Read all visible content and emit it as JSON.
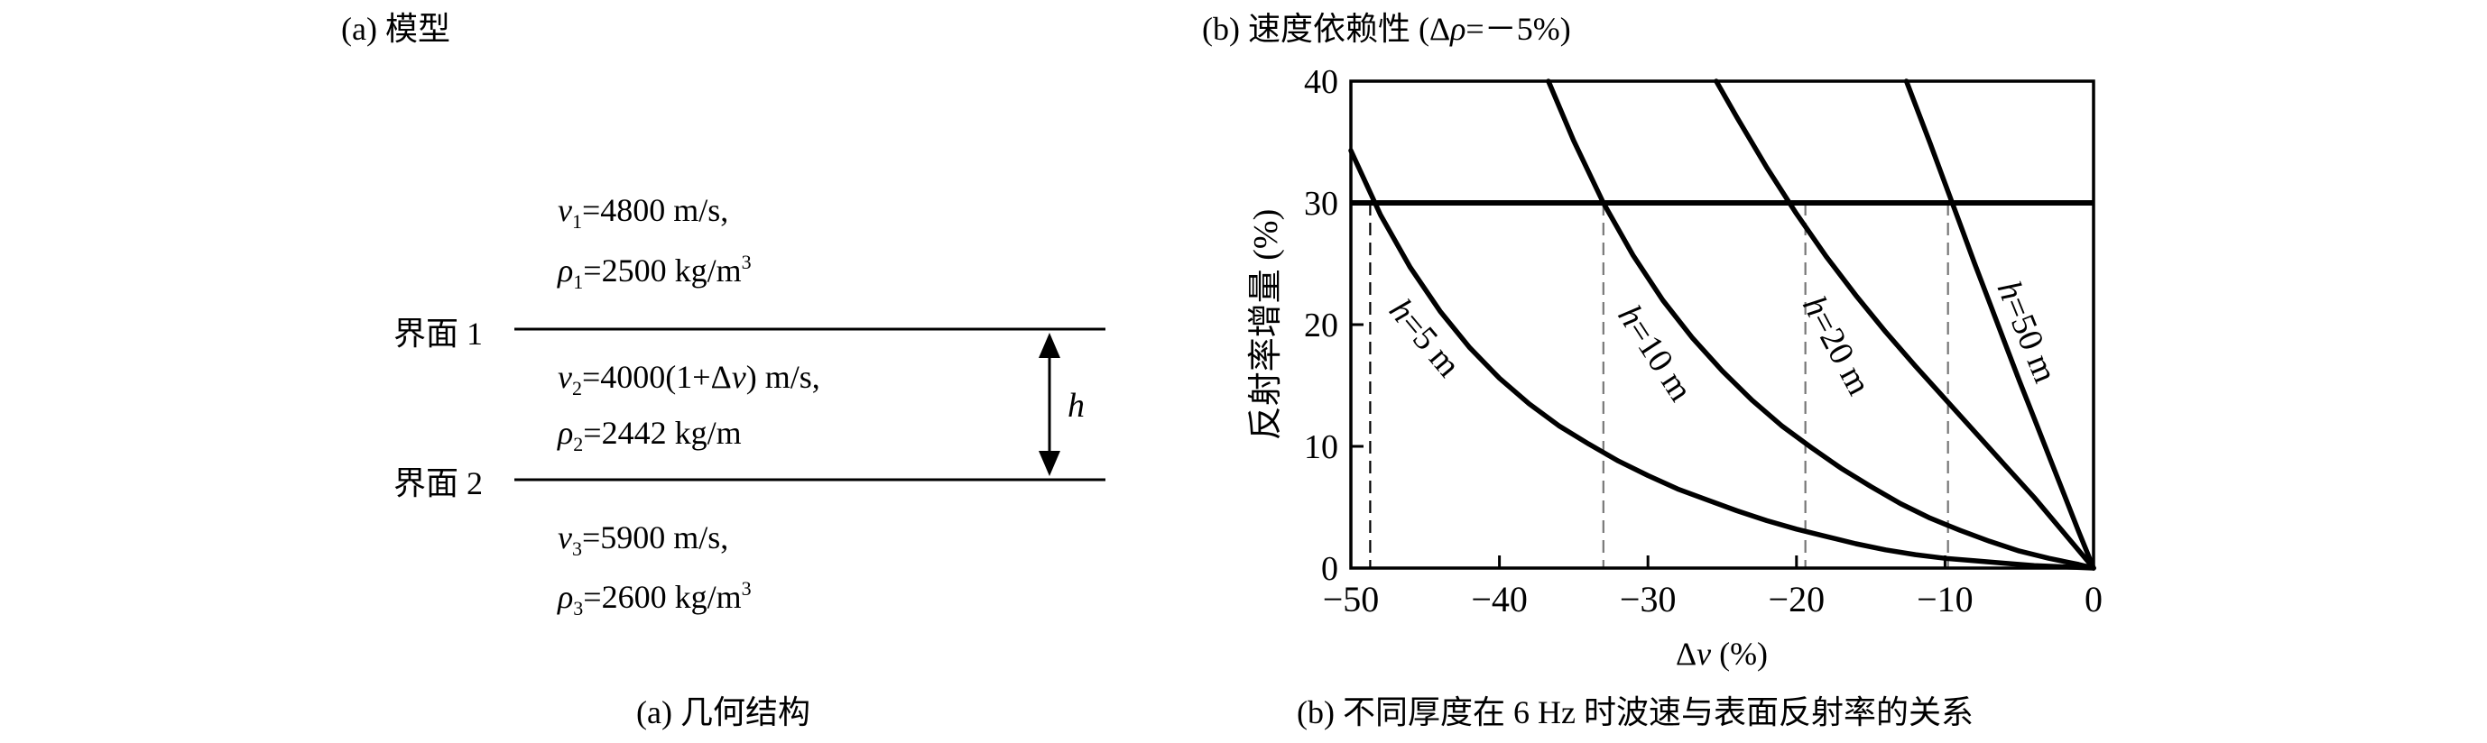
{
  "panel_a": {
    "heading": "(a) 模型",
    "caption": "(a) 几何结构",
    "interface_1": "界面 1",
    "interface_2": "界面 2",
    "thickness_symbol": "h",
    "layer_1": {
      "v_sym": "v",
      "v_sub": "1",
      "v_val": "=4800 m/s,",
      "rho_sym": "ρ",
      "rho_sub": "1",
      "rho_val": "=2500 kg/m",
      "rho_sup": "3"
    },
    "layer_2": {
      "v_sym": "v",
      "v_sub": "2",
      "v_val_a": "=4000(1+Δ",
      "v_val_b": "v",
      "v_val_c": ") m/s,",
      "rho_sym": "ρ",
      "rho_sub": "2",
      "rho_val": "=2442 kg/m"
    },
    "layer_3": {
      "v_sym": "v",
      "v_sub": "3",
      "v_val": "=5900 m/s,",
      "rho_sym": "ρ",
      "rho_sub": "3",
      "rho_val": "=2600 kg/m",
      "rho_sup": "3"
    }
  },
  "panel_b": {
    "heading_a": "(b) 速度依赖性 (Δ",
    "heading_rho": "ρ",
    "heading_b": "=－5%)",
    "caption": "(b) 不同厚度在 6 Hz 时波速与表面反射率的关系"
  },
  "chart_data": {
    "type": "line",
    "ylabel": "反射率增量 (%)",
    "xlabel_a": "Δ",
    "xlabel_v": "v",
    "xlabel_b": " (%)",
    "xlim": [
      -50,
      0
    ],
    "ylim": [
      0,
      40
    ],
    "x_ticks": [
      -50,
      -40,
      -30,
      -20,
      -10,
      0
    ],
    "x_tick_labels": [
      "−50",
      "−40",
      "−30",
      "−20",
      "−10",
      "0"
    ],
    "y_ticks": [
      0,
      10,
      20,
      30,
      40
    ],
    "y_tick_labels": [
      "0",
      "10",
      "20",
      "30",
      "40"
    ],
    "threshold": 30,
    "series": [
      {
        "name": "h=5 m",
        "points": [
          [
            -50,
            34.3
          ],
          [
            -48,
            29.0
          ],
          [
            -46,
            24.7
          ],
          [
            -44,
            21.1
          ],
          [
            -42,
            18.1
          ],
          [
            -40,
            15.6
          ],
          [
            -38,
            13.5
          ],
          [
            -36,
            11.7
          ],
          [
            -34,
            10.2
          ],
          [
            -32,
            8.8
          ],
          [
            -30,
            7.6
          ],
          [
            -28,
            6.5
          ],
          [
            -26,
            5.6
          ],
          [
            -24,
            4.7
          ],
          [
            -22,
            3.9
          ],
          [
            -20,
            3.2
          ],
          [
            -18,
            2.6
          ],
          [
            -16,
            2.0
          ],
          [
            -14,
            1.5
          ],
          [
            -12,
            1.1
          ],
          [
            -10,
            0.8
          ],
          [
            -8,
            0.6
          ],
          [
            -6,
            0.4
          ],
          [
            -4,
            0.2
          ],
          [
            -2,
            0.1
          ],
          [
            0,
            0
          ]
        ],
        "dash_x": -48.7
      },
      {
        "name": "h=10 m",
        "points": [
          [
            -36.7,
            40
          ],
          [
            -35,
            35.1
          ],
          [
            -33,
            30.0
          ],
          [
            -31,
            25.7
          ],
          [
            -29,
            22.0
          ],
          [
            -27,
            18.9
          ],
          [
            -25,
            16.2
          ],
          [
            -23,
            13.8
          ],
          [
            -21,
            11.7
          ],
          [
            -19,
            9.9
          ],
          [
            -17,
            8.2
          ],
          [
            -15,
            6.7
          ],
          [
            -13,
            5.3
          ],
          [
            -11,
            4.1
          ],
          [
            -9,
            3.1
          ],
          [
            -7,
            2.2
          ],
          [
            -5,
            1.4
          ],
          [
            -3,
            0.8
          ],
          [
            -1,
            0.3
          ],
          [
            0,
            0
          ]
        ],
        "dash_x": -33.0
      },
      {
        "name": "h=20 m",
        "points": [
          [
            -25.4,
            40
          ],
          [
            -24,
            37.0
          ],
          [
            -22,
            32.9
          ],
          [
            -20,
            29.1
          ],
          [
            -18,
            25.6
          ],
          [
            -16,
            22.4
          ],
          [
            -14,
            19.4
          ],
          [
            -12,
            16.6
          ],
          [
            -10,
            13.9
          ],
          [
            -8,
            11.2
          ],
          [
            -6,
            8.5
          ],
          [
            -4,
            5.8
          ],
          [
            -2,
            2.9
          ],
          [
            0,
            0
          ]
        ],
        "dash_x": -19.4
      },
      {
        "name": "h=50 m",
        "points": [
          [
            -12.6,
            40
          ],
          [
            -11,
            34.9
          ],
          [
            -10,
            31.6
          ],
          [
            -9,
            28.3
          ],
          [
            -8,
            25.0
          ],
          [
            -7,
            21.8
          ],
          [
            -6,
            18.6
          ],
          [
            -5,
            15.4
          ],
          [
            -4,
            12.3
          ],
          [
            -3,
            9.2
          ],
          [
            -2,
            6.1
          ],
          [
            -1,
            3.0
          ],
          [
            0,
            0
          ]
        ],
        "dash_x": -9.8
      }
    ],
    "curve_labels": [
      {
        "italic": "h",
        "text": "=5 m"
      },
      {
        "italic": "h",
        "text": "=10 m"
      },
      {
        "italic": "h",
        "text": "=20 m"
      },
      {
        "italic": "h",
        "text": "=50 m"
      }
    ]
  }
}
